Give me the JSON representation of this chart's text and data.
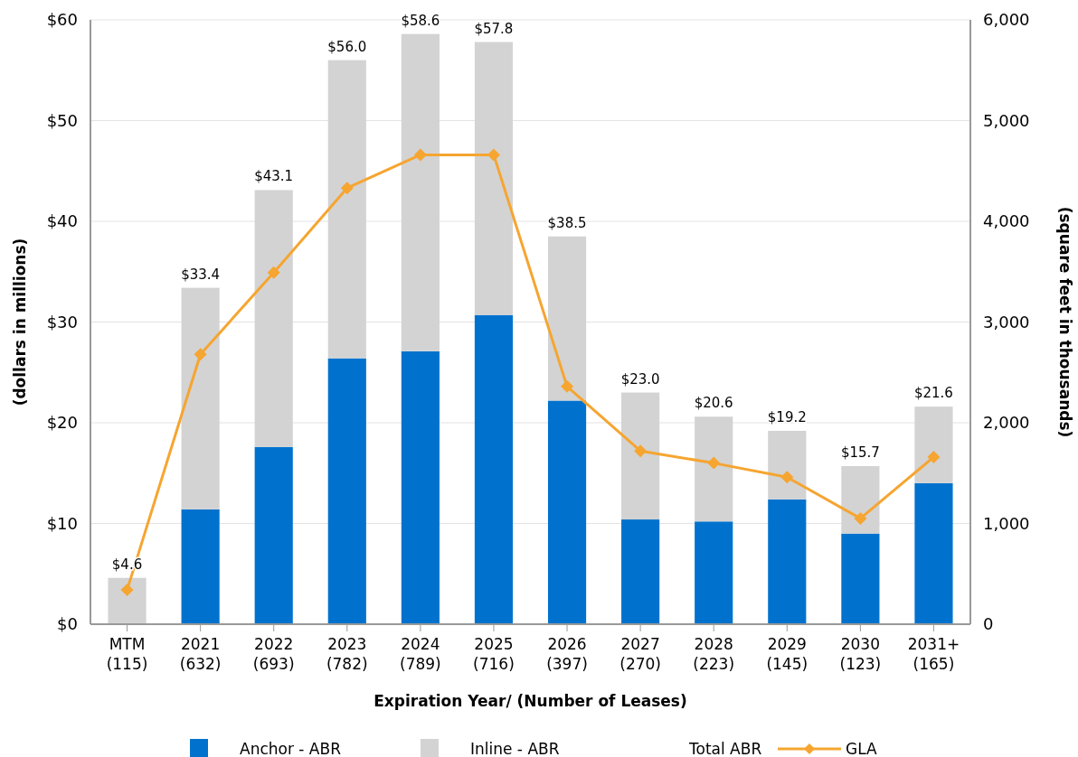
{
  "chart_data": {
    "type": "bar",
    "stacked": true,
    "xlabel": "Expiration Year/ (Number of Leases)",
    "ylabel": "(dollars in millions)",
    "y2label": "(square feet in thousands)",
    "categories": [
      "MTM\n(115)",
      "2021\n(632)",
      "2022\n(693)",
      "2023\n(782)",
      "2024\n(789)",
      "2025\n(716)",
      "2026\n(397)",
      "2027\n(270)",
      "2028\n(223)",
      "2029\n(145)",
      "2030\n(123)",
      "2031+\n(165)"
    ],
    "series": [
      {
        "name": "Anchor - ABR",
        "color": "#0072ce",
        "values": [
          0,
          11.4,
          17.6,
          26.4,
          27.1,
          30.7,
          22.2,
          10.4,
          10.2,
          12.4,
          9.0,
          14.0
        ]
      },
      {
        "name": "Inline - ABR",
        "color": "#d3d3d3",
        "values": [
          4.6,
          22.0,
          25.5,
          29.6,
          31.5,
          27.1,
          16.3,
          12.6,
          10.4,
          6.8,
          6.7,
          7.6
        ]
      },
      {
        "name": "GLA",
        "type": "line",
        "axis": "y2",
        "color": "#f6a530",
        "marker": "diamond",
        "values": [
          340,
          2680,
          3490,
          4330,
          4660,
          4660,
          2360,
          1720,
          1600,
          1460,
          1050,
          1660
        ]
      }
    ],
    "totals": [
      "$4.6",
      "$33.4",
      "$43.1",
      "$56.0",
      "$58.6",
      "$57.8",
      "$38.5",
      "$23.0",
      "$20.6",
      "$19.2",
      "$15.7",
      "$21.6"
    ],
    "annotations": [
      "Total ABR"
    ],
    "ylim": [
      0,
      60
    ],
    "yticks": [
      {
        "value": 0,
        "label": "$0"
      },
      {
        "value": 10,
        "label": "$10"
      },
      {
        "value": 20,
        "label": "$20"
      },
      {
        "value": 30,
        "label": "$30"
      },
      {
        "value": 40,
        "label": "$40"
      },
      {
        "value": 50,
        "label": "$50"
      },
      {
        "value": 60,
        "label": "$60"
      }
    ],
    "y2lim": [
      0,
      6000
    ],
    "y2ticks": [
      0,
      {
        "value": 1000,
        "label": "1,000"
      },
      {
        "value": 2000,
        "label": "2,000"
      },
      {
        "value": 3000,
        "label": "3,000"
      },
      {
        "value": 4000,
        "label": "4,000"
      },
      {
        "value": 5000,
        "label": "5,000"
      },
      {
        "value": 6000,
        "label": "6,000"
      }
    ],
    "grid": "y",
    "legend": "bottom"
  }
}
